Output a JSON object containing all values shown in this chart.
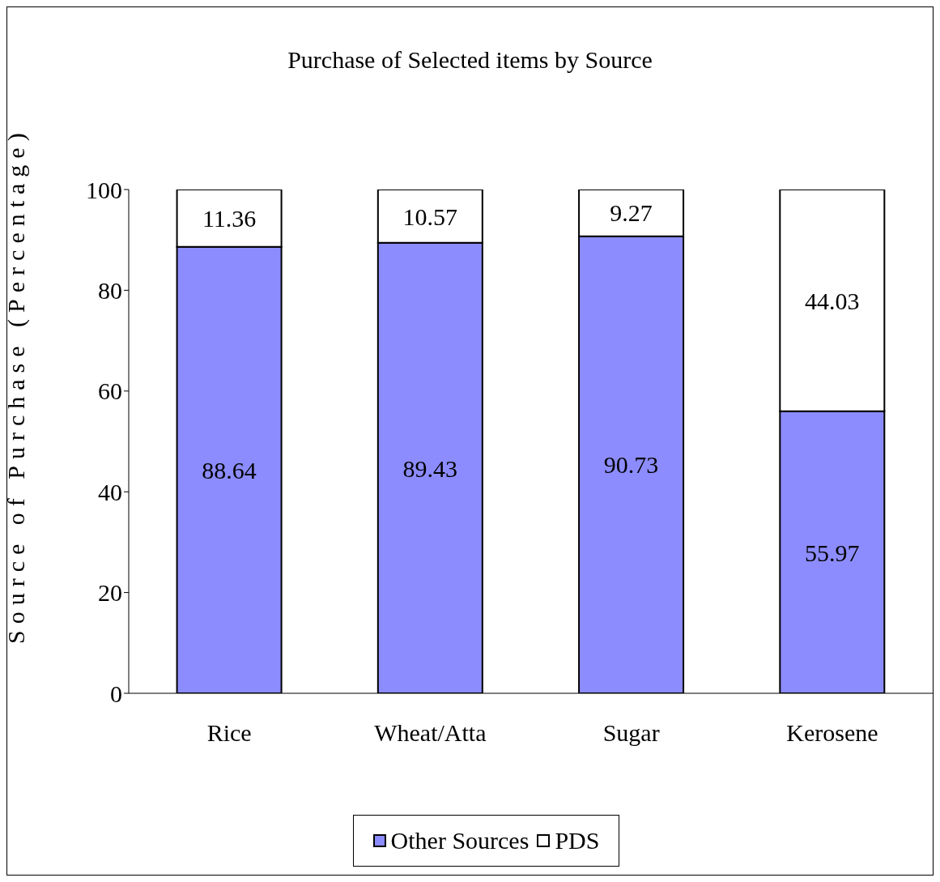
{
  "chart_data": {
    "type": "bar",
    "title": "Purchase of Selected items by Source",
    "ylabel": "Source of Purchase (Percentage)",
    "categories": [
      "Rice",
      "Wheat/Atta",
      "Sugar",
      "Kerosene"
    ],
    "stacked": true,
    "series": [
      {
        "name": "Other Sources",
        "color": "#8c8cff",
        "values": [
          88.64,
          89.43,
          90.73,
          55.97
        ]
      },
      {
        "name": "PDS",
        "color": "#ffffff",
        "values": [
          11.36,
          10.57,
          9.27,
          44.03
        ]
      }
    ],
    "ylim": [
      0,
      100
    ],
    "yticks": [
      0,
      20,
      40,
      60,
      80,
      100
    ],
    "grid": false,
    "legend": "bottom",
    "data_labels": true
  }
}
